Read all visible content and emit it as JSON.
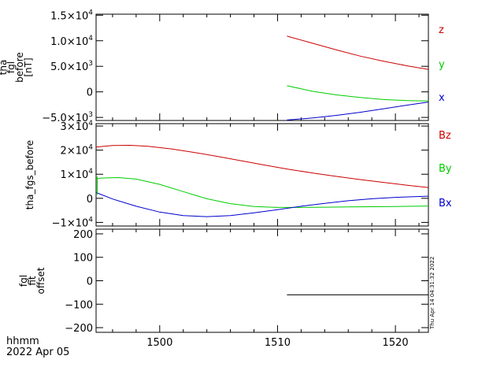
{
  "chart_data": [
    {
      "type": "line",
      "ylabel_lines": [
        "tha",
        "fgl",
        "before",
        "[nT]"
      ],
      "xlim": [
        1494.6,
        1522.8
      ],
      "ylim": [
        -5600,
        15200
      ],
      "yticks": [
        {
          "v": 15000,
          "m": "1.5",
          "e": "4",
          "sign": ""
        },
        {
          "v": 10000,
          "m": "1.0",
          "e": "4",
          "sign": ""
        },
        {
          "v": 5000,
          "m": "5.0",
          "e": "3",
          "sign": ""
        },
        {
          "v": 0,
          "plain": "0"
        },
        {
          "v": -5000,
          "m": "5.0",
          "e": "3",
          "sign": "−"
        }
      ],
      "series": [
        {
          "name": "z",
          "color": "#cc0000",
          "x": [
            1510.8,
            1513,
            1515,
            1517,
            1519,
            1521,
            1522.8
          ],
          "y": [
            10900,
            9500,
            8200,
            7000,
            6000,
            5100,
            4400
          ]
        },
        {
          "name": "y",
          "color": "#00cc00",
          "x": [
            1510.8,
            1513,
            1515,
            1517,
            1519,
            1521,
            1522.8
          ],
          "y": [
            1200,
            100,
            -600,
            -1100,
            -1500,
            -1700,
            -1800
          ]
        },
        {
          "name": "x",
          "color": "#0000cc",
          "x": [
            1510.8,
            1513,
            1515,
            1517,
            1519,
            1521,
            1522.8
          ],
          "y": [
            -5500,
            -5100,
            -4600,
            -4000,
            -3300,
            -2600,
            -2000
          ]
        }
      ]
    },
    {
      "type": "line",
      "ylabel_lines": [
        "tha_fgs_before"
      ],
      "xlim": [
        1494.6,
        1522.8
      ],
      "ylim": [
        -11500,
        31000
      ],
      "yticks": [
        {
          "v": 30000,
          "m": "3",
          "e": "4",
          "sign": ""
        },
        {
          "v": 20000,
          "m": "2",
          "e": "4",
          "sign": ""
        },
        {
          "v": 10000,
          "m": "1",
          "e": "4",
          "sign": ""
        },
        {
          "v": 0,
          "plain": "0"
        },
        {
          "v": -10000,
          "m": "1",
          "e": "4",
          "sign": "−"
        }
      ],
      "series": [
        {
          "name": "Bz",
          "color": "#cc0000",
          "x": [
            1494.6,
            1496,
            1497.5,
            1499,
            1501,
            1503,
            1505,
            1507,
            1509,
            1511,
            1513,
            1515,
            1517,
            1519,
            1521,
            1522.8
          ],
          "y": [
            21300,
            21900,
            22000,
            21600,
            20500,
            19000,
            17300,
            15500,
            13700,
            12000,
            10500,
            9100,
            7800,
            6600,
            5400,
            4500
          ]
        },
        {
          "name": "By",
          "color": "#00cc00",
          "x": [
            1494.6,
            1495,
            1496.5,
            1498,
            1500,
            1502,
            1504,
            1506,
            1508,
            1510,
            1512,
            1514,
            1516,
            1518,
            1520,
            1522.8
          ],
          "y": [
            8000,
            8400,
            8600,
            8000,
            5800,
            2800,
            -200,
            -2200,
            -3400,
            -3800,
            -3800,
            -3700,
            -3600,
            -3500,
            -3400,
            -3200
          ]
        },
        {
          "name": "Bx",
          "color": "#0000cc",
          "x": [
            1494.6,
            1496,
            1498,
            1500,
            1502,
            1504,
            1506,
            1508,
            1510,
            1512,
            1514,
            1516,
            1518,
            1520,
            1522.8
          ],
          "y": [
            2400,
            -300,
            -3300,
            -5700,
            -7200,
            -7600,
            -7200,
            -6000,
            -4700,
            -3300,
            -2100,
            -1000,
            -200,
            400,
            900
          ]
        }
      ],
      "spike": {
        "color": "#00cc00",
        "x": 1494.7,
        "y": [
          9000,
          1500
        ]
      }
    },
    {
      "type": "line",
      "ylabel_lines": [
        "fgl",
        "fit",
        "offset"
      ],
      "xlim": [
        1494.6,
        1522.8
      ],
      "ylim": [
        -220,
        220
      ],
      "yticks": [
        {
          "v": 200,
          "plain": "200"
        },
        {
          "v": 100,
          "plain": "100"
        },
        {
          "v": 0,
          "plain": "0"
        },
        {
          "v": -100,
          "plain": "−100"
        },
        {
          "v": -200,
          "plain": "−200"
        }
      ],
      "series": [
        {
          "name": "",
          "color": "#000000",
          "x": [
            1510.8,
            1522.8
          ],
          "y": [
            -60,
            -60
          ]
        }
      ]
    }
  ],
  "xaxis": {
    "ticks": [
      {
        "v": 1500,
        "label": "1500"
      },
      {
        "v": 1510,
        "label": "1510"
      },
      {
        "v": 1520,
        "label": "1520"
      }
    ],
    "minor_step": 2,
    "unit_label": "hhmm",
    "date_label": "2022 Apr 05"
  },
  "timestamp": "Thu Apr 14 04:31:32 2022"
}
